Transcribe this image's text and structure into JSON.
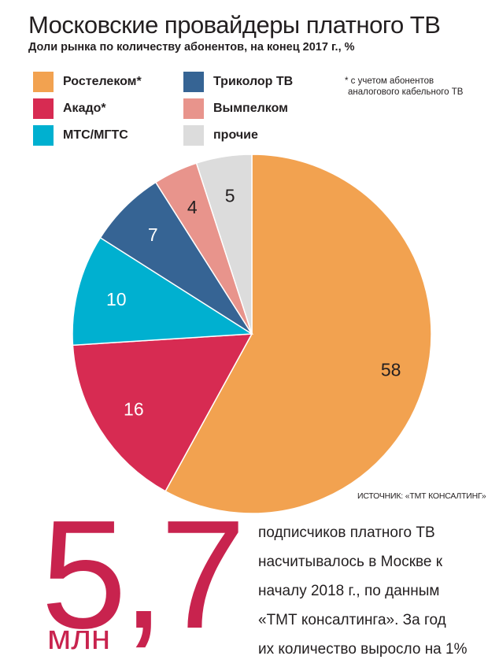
{
  "title": "Московские провайдеры платного ТВ",
  "subtitle": "Доли рынка по количеству абонентов, на конец 2017 г., %",
  "footnote": [
    "* с учетом абонентов",
    "аналогового кабельного ТВ"
  ],
  "source": "ИСТОЧНИК: «ТМТ КОНСАЛТИНГ»",
  "big_number": "5,7",
  "big_unit": "млн",
  "note_lines": [
    "подписчиков платного ТВ",
    "насчитывалось в Москве к",
    "началу 2018 г., по данным",
    "«ТМТ консалтинга». За год",
    "их количество выросло на 1%"
  ],
  "legend": [
    {
      "label": "Ростелеком*",
      "color": "#f2a250"
    },
    {
      "label": "Акадо*",
      "color": "#d72b52"
    },
    {
      "label": "МТС/МГТС",
      "color": "#00b0d0"
    },
    {
      "label": "Триколор ТВ",
      "color": "#366494"
    },
    {
      "label": "Вымпелком",
      "color": "#e8948c"
    },
    {
      "label": "прочие",
      "color": "#dcdcdc"
    }
  ],
  "chart_data": {
    "type": "pie",
    "title": "Московские провайдеры платного ТВ",
    "subtitle": "Доли рынка по количеству абонентов, на конец 2017 г., %",
    "slices": [
      {
        "label": "Ростелеком*",
        "value": 58,
        "color": "#f2a250"
      },
      {
        "label": "Акадо*",
        "value": 16,
        "color": "#d72b52"
      },
      {
        "label": "МТС/МГТС",
        "value": 10,
        "color": "#00b0d0"
      },
      {
        "label": "Триколор ТВ",
        "value": 7,
        "color": "#366494"
      },
      {
        "label": "Вымпелком",
        "value": 4,
        "color": "#e8948c"
      },
      {
        "label": "прочие",
        "value": 5,
        "color": "#dcdcdc"
      }
    ],
    "legend_position": "top"
  }
}
